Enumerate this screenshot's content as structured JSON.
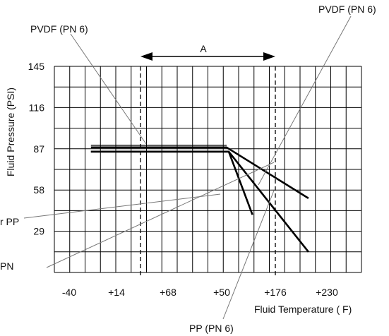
{
  "chart_data": {
    "type": "line",
    "xlabel": "Fluid Temperature ( F)",
    "ylabel": "Fluid Pressure (PSI)",
    "x_tick_labels": [
      "-40",
      "+14",
      "+68",
      "+50",
      "+176",
      "+230"
    ],
    "y_ticks": [
      29,
      58,
      87,
      116,
      145
    ],
    "ylim": [
      0,
      145
    ],
    "grid": true,
    "range_label": "A",
    "annotations": [
      "PVDF (PN 6)",
      "PVDF (PN 6)",
      "PP (PN 6)",
      "r PP",
      "PN"
    ],
    "series": [
      {
        "points": [
          [
            0.85,
            85
          ],
          [
            4.05,
            85
          ],
          [
            4.6,
            40.6
          ]
        ]
      },
      {
        "points": [
          [
            0.85,
            85
          ],
          [
            4.05,
            85
          ],
          [
            5.9,
            14.5
          ]
        ]
      },
      {
        "points": [
          [
            0.85,
            88
          ],
          [
            4.0,
            88
          ],
          [
            5.9,
            52.2
          ]
        ]
      },
      {
        "points": [
          [
            0.85,
            89.5
          ],
          [
            4.0,
            89.5
          ]
        ]
      }
    ]
  }
}
